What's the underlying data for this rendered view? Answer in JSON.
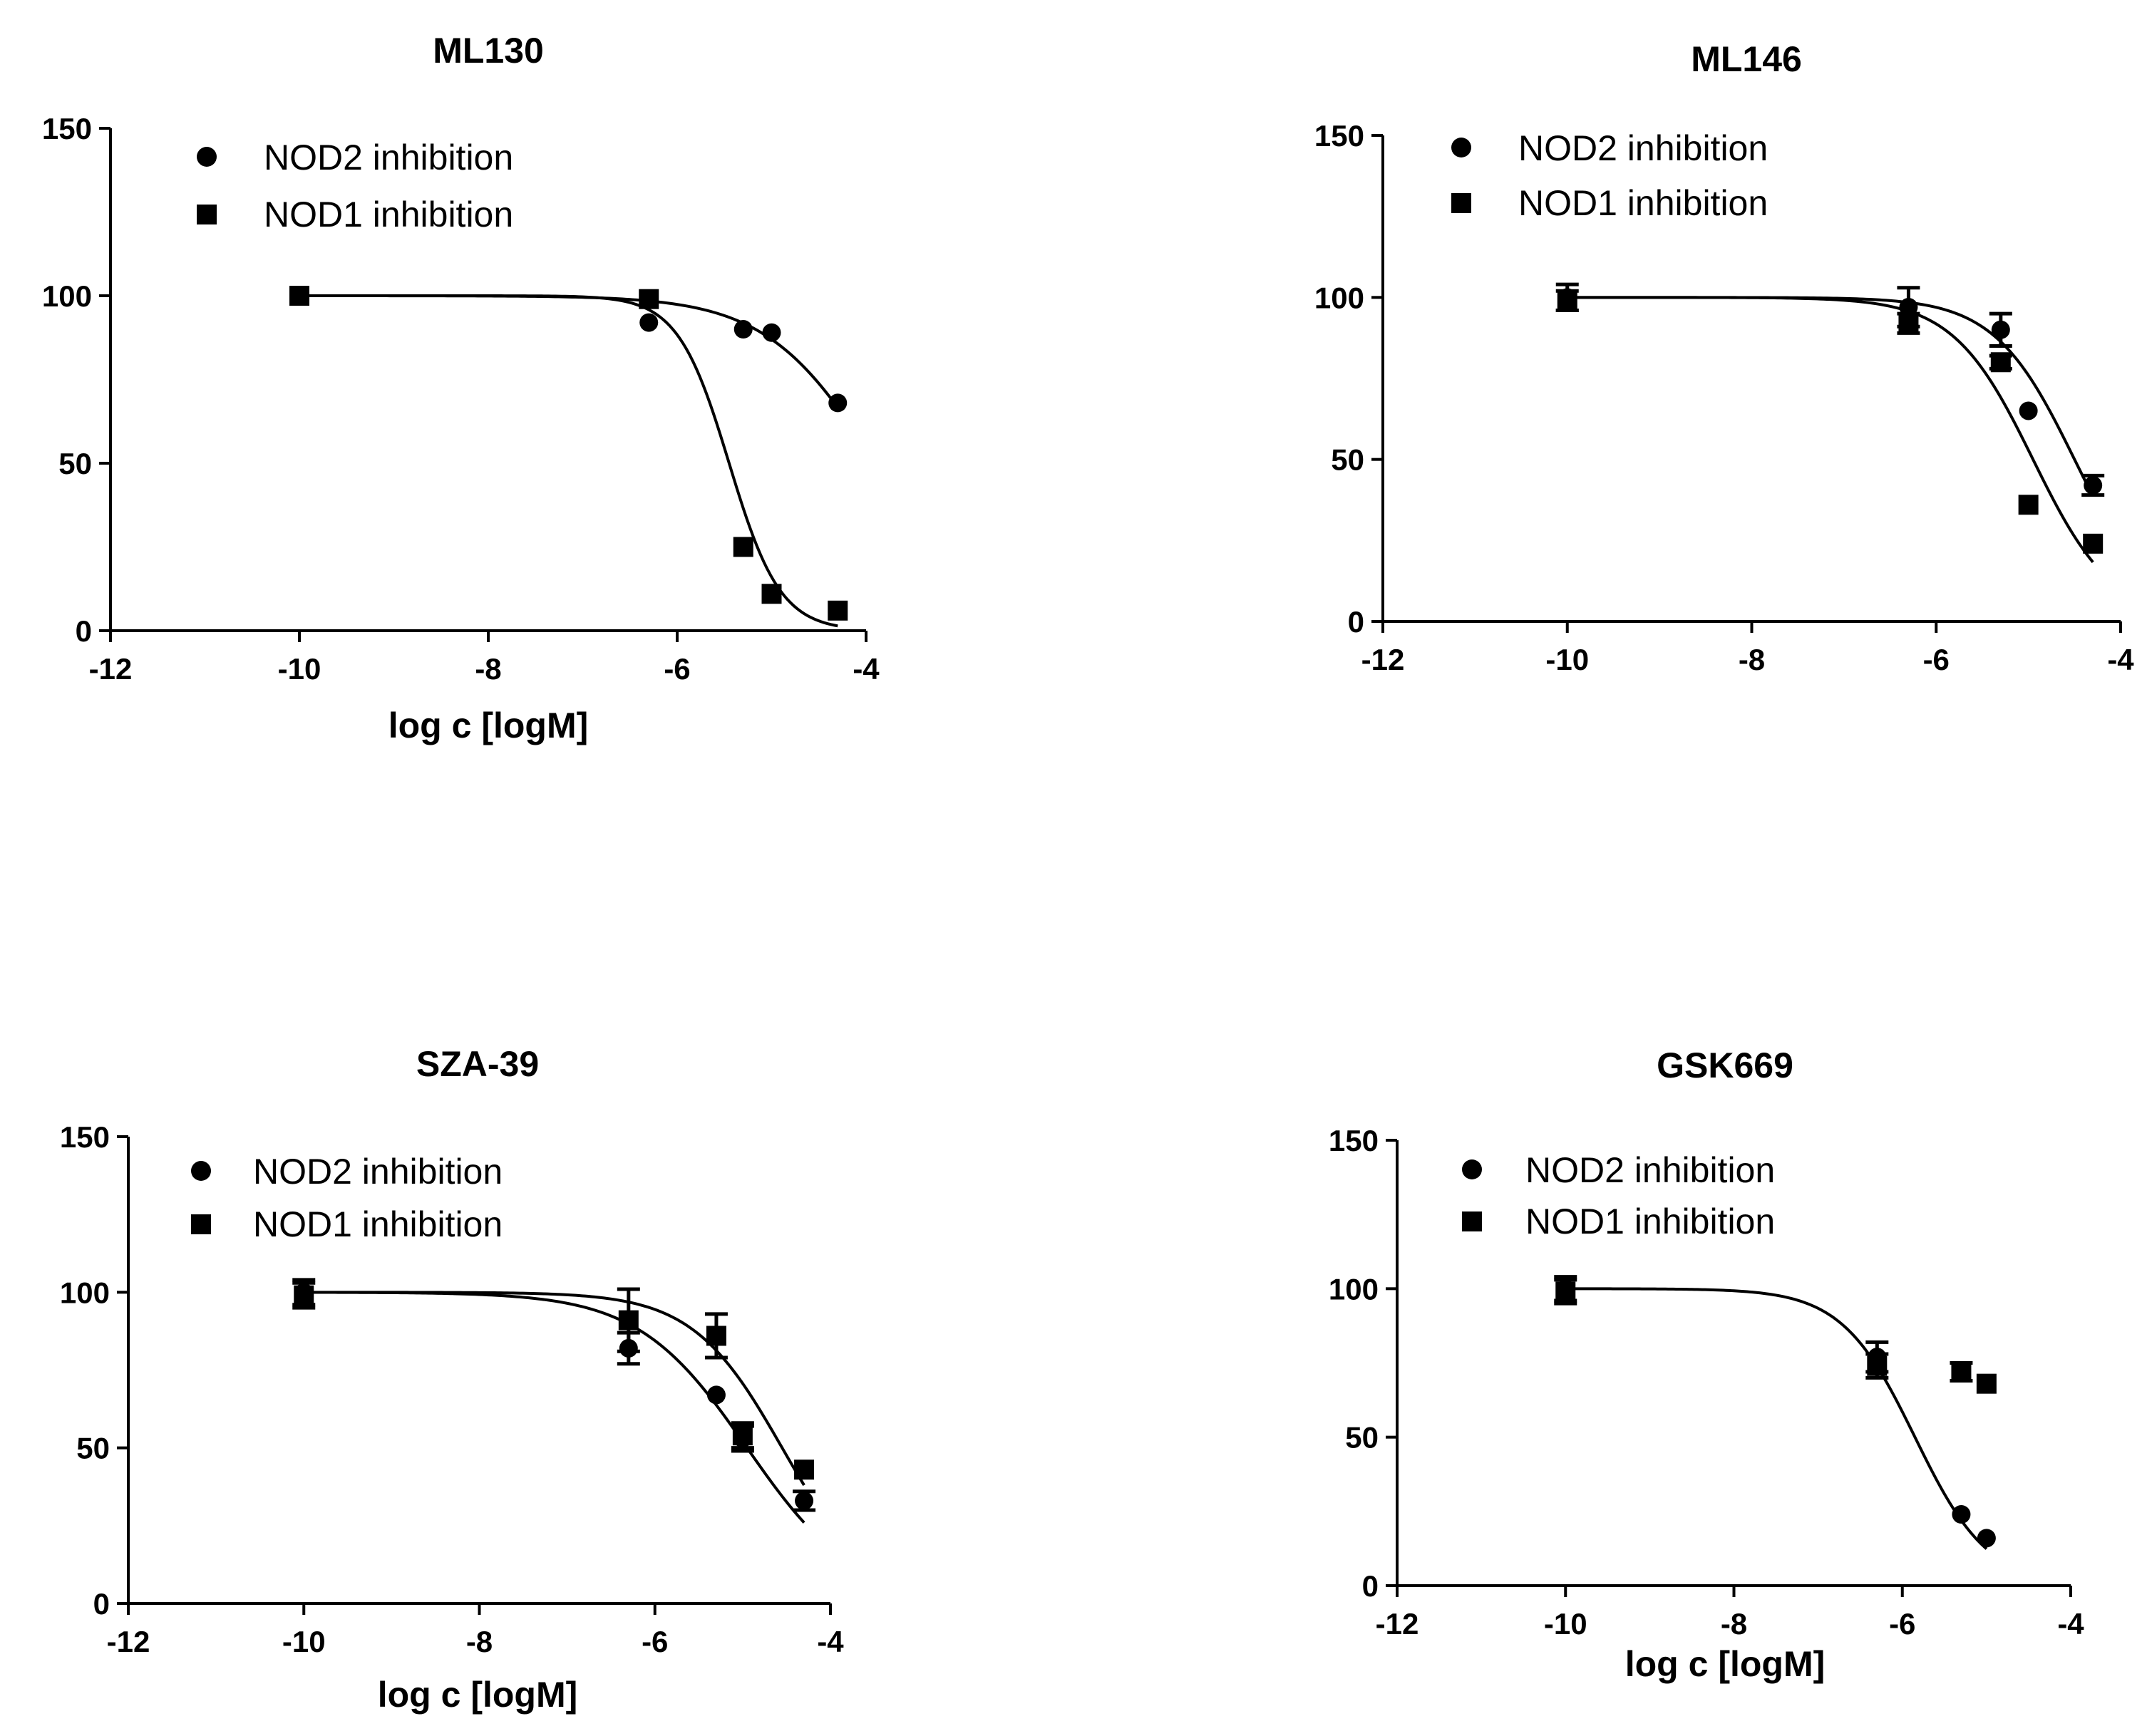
{
  "chart_data": [
    {
      "type": "scatter",
      "title": "ML130",
      "xlabel": "log c [logM]",
      "ylabel": "",
      "xlim": [
        -12,
        -4
      ],
      "ylim": [
        0,
        150
      ],
      "xticks": [
        -12,
        -10,
        -8,
        -6,
        -4
      ],
      "yticks": [
        0,
        50,
        100,
        150
      ],
      "legend": {
        "placement": "top-left",
        "entries": [
          "NOD2 inhibition",
          "NOD1 inhibition"
        ]
      },
      "series": [
        {
          "name": "NOD2 inhibition",
          "marker": "circle",
          "x": [
            -10,
            -6.3,
            -5.3,
            -5.0,
            -4.3
          ],
          "y": [
            100,
            92,
            90,
            89,
            68
          ],
          "err": [
            0,
            0,
            0,
            0,
            0
          ],
          "fit": {
            "top": 100,
            "bottom": 0,
            "logic50": -3.9,
            "hill": -0.75
          }
        },
        {
          "name": "NOD1 inhibition",
          "marker": "square",
          "x": [
            -10,
            -6.3,
            -5.3,
            -5.0,
            -4.3
          ],
          "y": [
            100,
            99,
            25,
            11,
            6
          ],
          "err": [
            0,
            0,
            0,
            0,
            0
          ],
          "fit": {
            "top": 100,
            "bottom": 0,
            "logic50": -5.45,
            "hill": -1.6
          }
        }
      ]
    },
    {
      "type": "scatter",
      "title": "ML146",
      "xlabel": "",
      "ylabel": "",
      "xlim": [
        -12,
        -4
      ],
      "ylim": [
        0,
        150
      ],
      "xticks": [
        -12,
        -10,
        -8,
        -6,
        -4
      ],
      "yticks": [
        0,
        50,
        100,
        150
      ],
      "legend": {
        "placement": "top-left",
        "entries": [
          "NOD2 inhibition",
          "NOD1 inhibition"
        ]
      },
      "series": [
        {
          "name": "NOD2 inhibition",
          "marker": "circle",
          "x": [
            -10,
            -6.3,
            -5.3,
            -5.0,
            -4.3
          ],
          "y": [
            100,
            97,
            90,
            65,
            42
          ],
          "err": [
            4,
            6,
            5,
            0,
            3
          ],
          "fit": {
            "top": 100,
            "bottom": 0,
            "logic50": -4.5,
            "hill": -1.0
          }
        },
        {
          "name": "NOD1 inhibition",
          "marker": "square",
          "x": [
            -10,
            -6.3,
            -5.3,
            -5.0,
            -4.3
          ],
          "y": [
            99,
            92,
            80,
            36,
            24
          ],
          "err": [
            3,
            3,
            2,
            0,
            0
          ],
          "fit": {
            "top": 100,
            "bottom": 0,
            "logic50": -4.95,
            "hill": -1.0
          }
        }
      ]
    },
    {
      "type": "scatter",
      "title": "SZA-39",
      "xlabel": "log c [logM]",
      "ylabel": "",
      "xlim": [
        -12,
        -4
      ],
      "ylim": [
        0,
        150
      ],
      "xticks": [
        -12,
        -10,
        -8,
        -6,
        -4
      ],
      "yticks": [
        0,
        50,
        100,
        150
      ],
      "legend": {
        "placement": "top-left",
        "entries": [
          "NOD2 inhibition",
          "NOD1 inhibition"
        ]
      },
      "series": [
        {
          "name": "NOD2 inhibition",
          "marker": "circle",
          "x": [
            -10,
            -6.3,
            -5.3,
            -5.0,
            -4.3
          ],
          "y": [
            100,
            82,
            67,
            53,
            33
          ],
          "err": [
            4,
            5,
            0,
            4,
            3
          ],
          "fit": {
            "top": 100,
            "bottom": 0,
            "logic50": -4.95,
            "hill": -0.7
          }
        },
        {
          "name": "NOD1 inhibition",
          "marker": "square",
          "x": [
            -10,
            -6.3,
            -5.3,
            -5.0,
            -4.3
          ],
          "y": [
            99,
            91,
            86,
            54,
            43
          ],
          "err": [
            4,
            10,
            7,
            4,
            0
          ],
          "fit": {
            "top": 100,
            "bottom": 0,
            "logic50": -4.55,
            "hill": -0.85
          }
        }
      ]
    },
    {
      "type": "scatter",
      "title": "GSK669",
      "xlabel": "log c [logM]",
      "ylabel": "",
      "xlim": [
        -12,
        -4
      ],
      "ylim": [
        0,
        150
      ],
      "xticks": [
        -12,
        -10,
        -8,
        -6,
        -4
      ],
      "yticks": [
        0,
        50,
        100,
        150
      ],
      "legend": {
        "placement": "top-left",
        "entries": [
          "NOD2 inhibition",
          "NOD1 inhibition"
        ]
      },
      "series": [
        {
          "name": "NOD2 inhibition",
          "marker": "circle",
          "x": [
            -10,
            -6.3,
            -5.3,
            -5.0
          ],
          "y": [
            100,
            77,
            24,
            16
          ],
          "err": [
            4,
            5,
            0,
            0
          ],
          "fit": {
            "top": 100,
            "bottom": 0,
            "logic50": -5.85,
            "hill": -1.0
          }
        },
        {
          "name": "NOD1 inhibition",
          "marker": "square",
          "x": [
            -10,
            -6.3,
            -5.3,
            -5.0
          ],
          "y": [
            99,
            74,
            72,
            68
          ],
          "err": [
            4,
            4,
            3,
            0
          ],
          "fit": null
        }
      ]
    }
  ]
}
